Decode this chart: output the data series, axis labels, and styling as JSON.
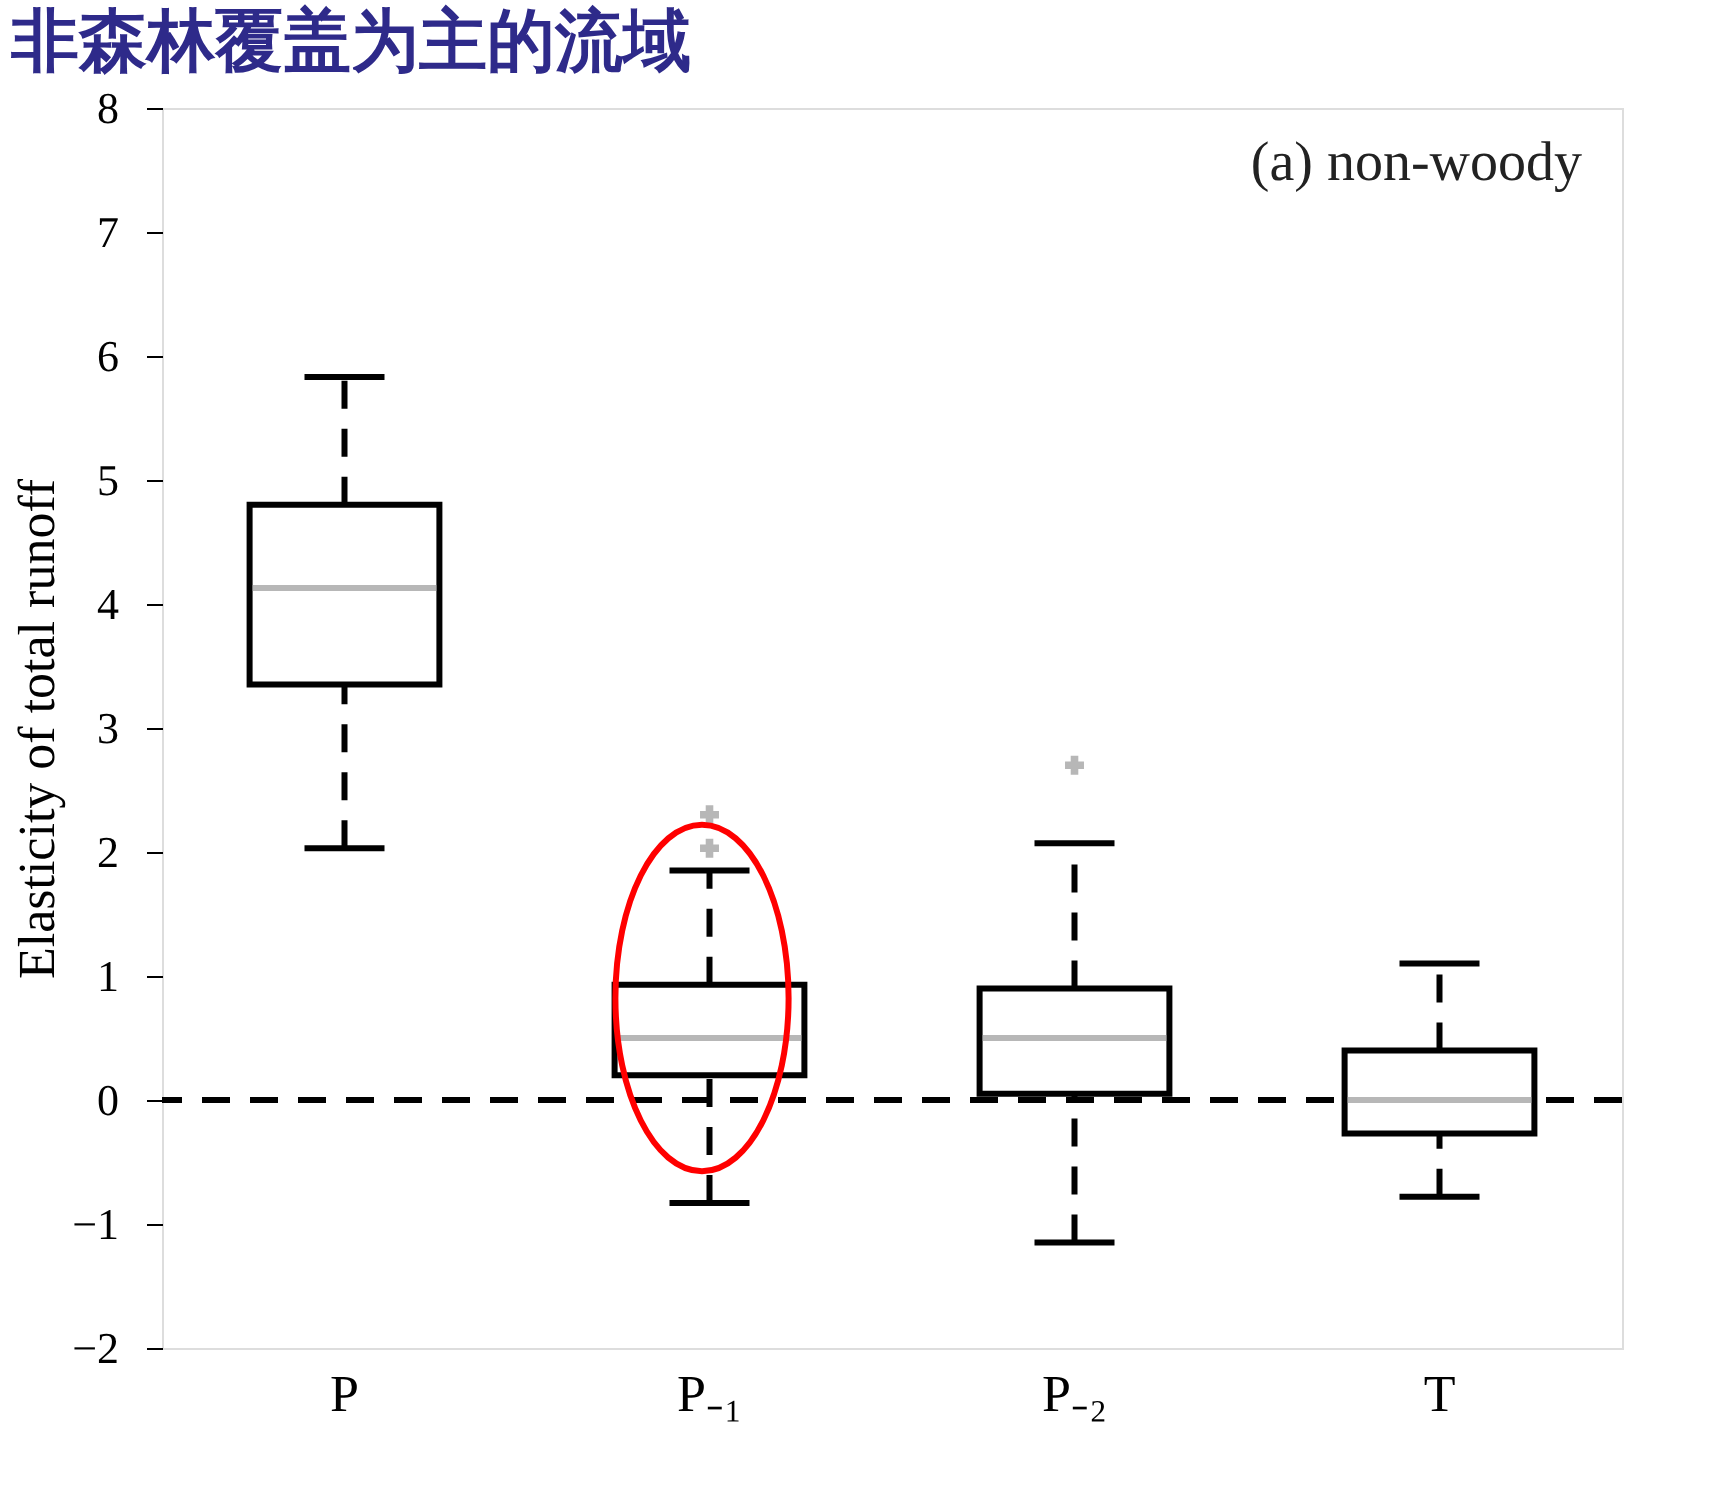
{
  "chart_data": {
    "type": "box",
    "title": "非森林覆盖为主的流域",
    "ylabel": "Elasticity of total runoff",
    "categories": [
      "P",
      "P₋₁",
      "P₋₂",
      "T"
    ],
    "boxes": [
      {
        "low": 2.03,
        "q1": 3.35,
        "median": 4.13,
        "q3": 4.8,
        "high": 5.83
      },
      {
        "low": -0.83,
        "q1": 0.2,
        "median": 0.5,
        "q3": 0.93,
        "high": 1.85,
        "outliers": [
          2.03,
          2.3
        ]
      },
      {
        "low": -1.15,
        "q1": 0.05,
        "median": 0.5,
        "q3": 0.9,
        "high": 2.07,
        "outliers": [
          2.7
        ]
      },
      {
        "low": -0.78,
        "q1": -0.27,
        "median": 0,
        "q3": 0.4,
        "high": 1.1
      }
    ],
    "ylim": [
      -2,
      8
    ],
    "yticks": [
      -2,
      -1,
      0,
      1,
      2,
      3,
      4,
      5,
      6,
      7,
      8
    ],
    "ref_lines": [
      {
        "axis": "y",
        "value": 0,
        "line_style": "dashed",
        "color": "#000000"
      }
    ],
    "annotations": [
      "(a) non-woody"
    ],
    "grid": false
  }
}
